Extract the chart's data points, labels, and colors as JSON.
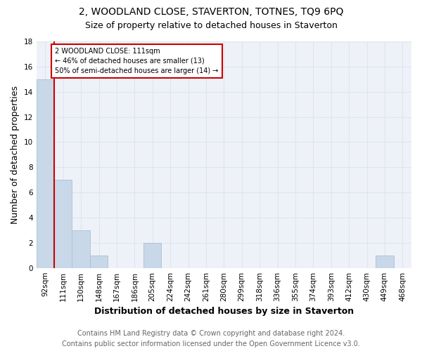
{
  "title": "2, WOODLAND CLOSE, STAVERTON, TOTNES, TQ9 6PQ",
  "subtitle": "Size of property relative to detached houses in Staverton",
  "xlabel": "Distribution of detached houses by size in Staverton",
  "ylabel": "Number of detached properties",
  "footer_line1": "Contains HM Land Registry data © Crown copyright and database right 2024.",
  "footer_line2": "Contains public sector information licensed under the Open Government Licence v3.0.",
  "categories": [
    "92sqm",
    "111sqm",
    "130sqm",
    "148sqm",
    "167sqm",
    "186sqm",
    "205sqm",
    "224sqm",
    "242sqm",
    "261sqm",
    "280sqm",
    "299sqm",
    "318sqm",
    "336sqm",
    "355sqm",
    "374sqm",
    "393sqm",
    "412sqm",
    "430sqm",
    "449sqm",
    "468sqm"
  ],
  "values": [
    15,
    7,
    3,
    1,
    0,
    0,
    2,
    0,
    0,
    0,
    0,
    0,
    0,
    0,
    0,
    0,
    0,
    0,
    0,
    1,
    0
  ],
  "bar_color": "#c8d8e8",
  "bar_edge_color": "#a8c0d8",
  "vline_x_index": 1,
  "vline_color": "#cc0000",
  "annotation_box_text": "2 WOODLAND CLOSE: 111sqm\n← 46% of detached houses are smaller (13)\n50% of semi-detached houses are larger (14) →",
  "annotation_box_color": "#cc0000",
  "annotation_box_fill": "white",
  "ylim": [
    0,
    18
  ],
  "yticks": [
    0,
    2,
    4,
    6,
    8,
    10,
    12,
    14,
    16,
    18
  ],
  "grid_color": "#dde5ee",
  "background_color": "#ffffff",
  "plot_background_color": "#eef2f8",
  "title_fontsize": 10,
  "subtitle_fontsize": 9,
  "axis_label_fontsize": 9,
  "tick_fontsize": 7.5,
  "footer_fontsize": 7
}
